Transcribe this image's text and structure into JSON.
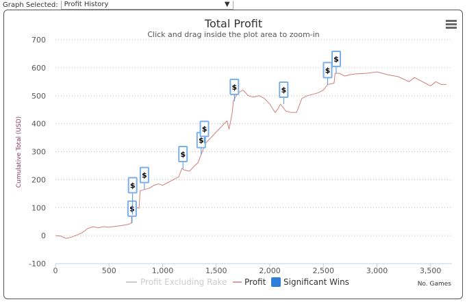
{
  "header": {
    "label": "Graph Selected:",
    "selected": "Profit History",
    "arrow": "▼"
  },
  "menu_icon": "hamburger-icon",
  "colors": {
    "profit": "#c0504d",
    "flag": "#4a90e2",
    "legend_inactive": "#cccccc",
    "title": "#333333"
  },
  "chart_data": {
    "type": "line",
    "title": "Total Profit",
    "subtitle": "Click and drag inside the plot area to zoom-in",
    "xlabel": "No. Games",
    "ylabel": "Cumulative Total (USD)",
    "xlim": [
      0,
      3700
    ],
    "ylim": [
      -100,
      700
    ],
    "xticks": [
      0,
      500,
      1000,
      1500,
      2000,
      2500,
      3000,
      3500
    ],
    "xtick_labels": [
      "0",
      "500",
      "1,000",
      "1,500",
      "2,000",
      "2,500",
      "3,000",
      "3,500"
    ],
    "yticks": [
      -100,
      0,
      100,
      200,
      300,
      400,
      500,
      600,
      700
    ],
    "ytick_labels": [
      "-100",
      "0",
      "100",
      "200",
      "300",
      "400",
      "500",
      "600",
      "700"
    ],
    "grid": true,
    "legend": {
      "placement": "bottom",
      "items": [
        "Profit Excluding Rake",
        "Profit",
        "Significant Wins"
      ]
    },
    "series": [
      {
        "name": "Profit",
        "points": [
          [
            0,
            0
          ],
          [
            50,
            -2
          ],
          [
            100,
            -10
          ],
          [
            150,
            -5
          ],
          [
            200,
            2
          ],
          [
            250,
            10
          ],
          [
            300,
            25
          ],
          [
            350,
            32
          ],
          [
            400,
            28
          ],
          [
            450,
            32
          ],
          [
            500,
            30
          ],
          [
            600,
            35
          ],
          [
            680,
            40
          ],
          [
            710,
            45
          ],
          [
            712,
            80
          ],
          [
            740,
            90
          ],
          [
            760,
            100
          ],
          [
            780,
            98
          ],
          [
            790,
            160
          ],
          [
            830,
            165
          ],
          [
            880,
            170
          ],
          [
            920,
            180
          ],
          [
            960,
            185
          ],
          [
            1000,
            180
          ],
          [
            1050,
            190
          ],
          [
            1100,
            200
          ],
          [
            1150,
            210
          ],
          [
            1180,
            240
          ],
          [
            1200,
            235
          ],
          [
            1250,
            230
          ],
          [
            1300,
            250
          ],
          [
            1330,
            260
          ],
          [
            1360,
            290
          ],
          [
            1380,
            310
          ],
          [
            1400,
            330
          ],
          [
            1450,
            350
          ],
          [
            1500,
            370
          ],
          [
            1550,
            390
          ],
          [
            1600,
            410
          ],
          [
            1620,
            380
          ],
          [
            1650,
            440
          ],
          [
            1660,
            480
          ],
          [
            1700,
            510
          ],
          [
            1750,
            520
          ],
          [
            1800,
            500
          ],
          [
            1850,
            495
          ],
          [
            1900,
            500
          ],
          [
            1950,
            490
          ],
          [
            2000,
            470
          ],
          [
            2050,
            440
          ],
          [
            2080,
            455
          ],
          [
            2100,
            470
          ],
          [
            2150,
            445
          ],
          [
            2200,
            440
          ],
          [
            2250,
            440
          ],
          [
            2300,
            490
          ],
          [
            2350,
            500
          ],
          [
            2400,
            505
          ],
          [
            2450,
            510
          ],
          [
            2500,
            520
          ],
          [
            2540,
            540
          ],
          [
            2600,
            545
          ],
          [
            2610,
            580
          ],
          [
            2650,
            580
          ],
          [
            2700,
            570
          ],
          [
            2750,
            575
          ],
          [
            2800,
            578
          ],
          [
            2900,
            580
          ],
          [
            3000,
            585
          ],
          [
            3100,
            575
          ],
          [
            3200,
            568
          ],
          [
            3300,
            550
          ],
          [
            3350,
            565
          ],
          [
            3400,
            555
          ],
          [
            3500,
            535
          ],
          [
            3550,
            550
          ],
          [
            3600,
            540
          ],
          [
            3650,
            540
          ]
        ]
      }
    ],
    "significant_wins": {
      "label": "$",
      "games": [
        715,
        720,
        830,
        1190,
        1360,
        1390,
        1670,
        2130,
        2540,
        2620
      ],
      "values": [
        45,
        75,
        165,
        240,
        290,
        330,
        480,
        470,
        540,
        580
      ],
      "offsets": [
        1,
        2,
        1,
        1,
        1,
        1,
        1,
        1,
        1,
        1
      ]
    }
  }
}
